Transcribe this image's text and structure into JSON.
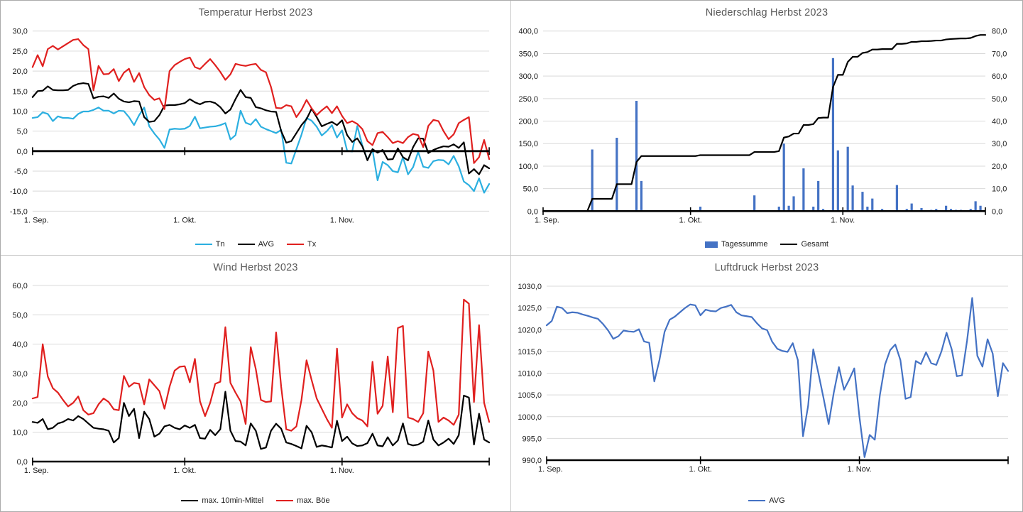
{
  "page": {
    "background": "#ffffff",
    "grid_color": "#d9d9d9",
    "title_color": "#595959"
  },
  "chart_data": [
    {
      "title": "Temperatur Herbst 2023",
      "type": "line",
      "x": {
        "tick_labels": [
          "1. Sep.",
          "1. Okt.",
          "1. Nov."
        ],
        "tick_days": [
          0,
          30,
          61
        ],
        "total_days": 91
      },
      "axes": {
        "left": {
          "min": -15,
          "max": 30,
          "step": 5,
          "labels": [
            "30,0",
            "25,0",
            "20,0",
            "15,0",
            "10,0",
            "5,0",
            "0,0",
            "-5,0",
            "-10,0",
            "-15,0"
          ],
          "label_color": "#1a1a1a"
        }
      },
      "x_axis_at_value": 0,
      "grid": true,
      "legend_position": "bottom",
      "series": [
        {
          "name": "Tn",
          "type": "line",
          "axis": "left",
          "color": "#2BAFE0",
          "values": [
            8.3,
            8.5,
            9.7,
            9.3,
            7.5,
            8.7,
            8.3,
            8.3,
            8.1,
            9.3,
            9.9,
            9.9,
            10.3,
            10.9,
            10.1,
            10.1,
            9.4,
            10.1,
            10.0,
            8.5,
            6.5,
            9.0,
            10.9,
            6.2,
            4.4,
            2.9,
            0.8,
            5.4,
            5.6,
            5.5,
            5.6,
            6.3,
            8.6,
            5.7,
            5.9,
            6.1,
            6.2,
            6.5,
            7.0,
            2.9,
            4.0,
            10.1,
            7.1,
            6.6,
            8.0,
            6.1,
            5.5,
            5.0,
            4.5,
            5.3,
            -2.9,
            -3.1,
            0.5,
            4.1,
            8.3,
            7.6,
            6.1,
            3.9,
            5.0,
            6.5,
            3.4,
            5.2,
            0.1,
            -0.1,
            6.3,
            1.4,
            -2.2,
            0.3,
            -7.3,
            -2.7,
            -3.5,
            -5.0,
            -5.3,
            -1.5,
            -5.8,
            -4.0,
            -0.2,
            -3.9,
            -4.2,
            -2.5,
            -2.2,
            -2.3,
            -3.3,
            -1.2,
            -3.8,
            -7.6,
            -8.5,
            -10.0,
            -6.8,
            -10.4,
            -8.2
          ]
        },
        {
          "name": "AVG",
          "type": "line",
          "axis": "left",
          "color": "#000000",
          "values": [
            13.5,
            15.0,
            15.1,
            16.2,
            15.3,
            15.2,
            15.2,
            15.3,
            16.3,
            16.8,
            17.0,
            16.8,
            13.2,
            13.6,
            13.7,
            13.3,
            14.4,
            13.1,
            12.4,
            12.2,
            12.5,
            12.4,
            8.5,
            7.3,
            7.5,
            9.0,
            11.4,
            11.5,
            11.5,
            11.7,
            12.0,
            13.0,
            12.2,
            11.7,
            12.3,
            12.4,
            12.0,
            11.0,
            9.4,
            10.4,
            13.0,
            15.3,
            13.5,
            13.3,
            11.0,
            10.7,
            10.2,
            9.9,
            9.8,
            5.0,
            2.1,
            2.5,
            4.5,
            6.5,
            8.0,
            10.6,
            8.5,
            6.2,
            6.8,
            7.3,
            6.5,
            7.7,
            4.0,
            2.3,
            3.2,
            1.2,
            -2.3,
            0.5,
            -0.4,
            0.3,
            -2.1,
            -2.0,
            0.7,
            -1.5,
            -2.3,
            1.0,
            3.2,
            3.1,
            -0.5,
            0.3,
            0.8,
            1.2,
            1.1,
            1.7,
            0.8,
            2.2,
            -5.6,
            -4.5,
            -5.8,
            -3.5,
            -4.3
          ]
        },
        {
          "name": "Tx",
          "type": "line",
          "axis": "left",
          "color": "#E0201F",
          "values": [
            21.0,
            24.0,
            21.2,
            25.5,
            26.3,
            25.4,
            26.2,
            27.0,
            27.8,
            28.0,
            26.5,
            25.5,
            15.2,
            21.3,
            19.2,
            19.3,
            20.5,
            17.5,
            19.6,
            20.6,
            17.3,
            19.5,
            16.0,
            14.0,
            12.8,
            13.2,
            10.5,
            20.0,
            21.5,
            22.3,
            23.0,
            23.4,
            21.0,
            20.5,
            21.8,
            23.0,
            21.5,
            19.8,
            17.8,
            19.2,
            21.8,
            21.5,
            21.3,
            21.6,
            21.8,
            20.3,
            19.7,
            16.0,
            10.8,
            10.7,
            11.5,
            11.2,
            8.5,
            10.3,
            12.8,
            10.7,
            9.0,
            10.2,
            11.2,
            9.5,
            11.2,
            8.8,
            7.0,
            7.5,
            6.8,
            5.5,
            2.5,
            1.5,
            4.5,
            4.8,
            3.5,
            2.0,
            2.5,
            2.0,
            3.5,
            4.3,
            4.0,
            1.0,
            6.3,
            7.8,
            7.5,
            5.0,
            3.0,
            4.2,
            7.0,
            7.8,
            8.5,
            -3.0,
            -1.5,
            2.8,
            -2.0
          ]
        }
      ]
    },
    {
      "title": "Niederschlag Herbst 2023",
      "type": "bar+line",
      "x": {
        "tick_labels": [
          "1. Sep.",
          "1. Okt.",
          "1. Nov."
        ],
        "tick_days": [
          0,
          30,
          61
        ],
        "total_days": 91
      },
      "axes": {
        "left": {
          "min": 0,
          "max": 400,
          "step": 50,
          "labels": [
            "400,0",
            "350,0",
            "300,0",
            "250,0",
            "200,0",
            "150,0",
            "100,0",
            "50,0",
            "0,0"
          ],
          "label_color": "#1a1a1a"
        },
        "right": {
          "min": 0,
          "max": 80,
          "step": 10,
          "labels": [
            "80,0",
            "70,0",
            "60,0",
            "50,0",
            "40,0",
            "30,0",
            "20,0",
            "10,0",
            "0,0"
          ],
          "label_color": "#4472C4"
        }
      },
      "x_axis_at_value": 0,
      "grid": true,
      "legend_position": "bottom",
      "series": [
        {
          "name": "Tagessumme",
          "type": "bar",
          "axis": "right",
          "color": "#4472C4",
          "values": [
            0,
            0,
            0,
            0,
            0,
            0,
            0,
            0,
            0,
            0,
            27.4,
            0,
            0,
            0,
            0,
            32.6,
            0,
            0,
            0,
            49.0,
            13.4,
            0,
            0,
            0,
            0,
            0,
            0,
            0,
            0,
            0,
            0,
            0,
            2.0,
            0,
            0,
            0,
            0,
            0,
            0,
            0,
            0,
            0,
            0,
            7.0,
            0,
            0,
            0,
            0,
            2.0,
            30.0,
            2.4,
            6.6,
            0,
            19.0,
            0,
            2.0,
            13.4,
            1.0,
            0,
            68.0,
            27.0,
            0,
            28.6,
            11.4,
            0,
            8.6,
            2.0,
            5.6,
            0,
            1.0,
            0,
            0,
            11.6,
            0,
            1.0,
            3.4,
            0,
            1.4,
            0,
            0.6,
            1.0,
            0,
            2.4,
            1.0,
            0.6,
            0.6,
            0,
            1.0,
            4.4,
            2.4,
            0
          ]
        },
        {
          "name": "Gesamt",
          "type": "line",
          "axis": "left",
          "color": "#000000",
          "values": [
            0,
            0,
            0,
            0,
            0,
            0,
            0,
            0,
            0,
            0,
            27.4,
            27.4,
            27.4,
            27.4,
            27.4,
            60,
            60,
            60,
            60,
            109,
            122.4,
            122.4,
            122.4,
            122.4,
            122.4,
            122.4,
            122.4,
            122.4,
            122.4,
            122.4,
            122.4,
            122.4,
            124.4,
            124.4,
            124.4,
            124.4,
            124.4,
            124.4,
            124.4,
            124.4,
            124.4,
            124.4,
            124.4,
            131.4,
            131.4,
            131.4,
            131.4,
            131.4,
            133.4,
            163.4,
            165.8,
            172.4,
            172.4,
            191.4,
            191.4,
            193.4,
            206.8,
            207.8,
            207.8,
            275.8,
            302.8,
            302.8,
            331.4,
            342.8,
            342.8,
            351.4,
            353.4,
            359,
            359,
            360,
            360,
            360,
            371.6,
            371.6,
            372.6,
            376,
            376,
            377.4,
            377.4,
            378,
            379,
            379,
            381.4,
            382.4,
            383,
            383.6,
            383.6,
            384.6,
            389,
            391.4,
            391.4
          ]
        }
      ]
    },
    {
      "title": "Wind Herbst 2023",
      "type": "line",
      "x": {
        "tick_labels": [
          "1. Sep.",
          "1. Okt.",
          "1. Nov."
        ],
        "tick_days": [
          0,
          30,
          61
        ],
        "total_days": 91
      },
      "axes": {
        "left": {
          "min": 0,
          "max": 60,
          "step": 10,
          "labels": [
            "60,0",
            "50,0",
            "40,0",
            "30,0",
            "20,0",
            "10,0",
            "0,0"
          ],
          "label_color": "#1a1a1a"
        }
      },
      "x_axis_at_value": 0,
      "grid": true,
      "legend_position": "bottom",
      "series": [
        {
          "name": "max. 10min-Mittel",
          "type": "line",
          "axis": "left",
          "color": "#000000",
          "values": [
            13.5,
            13.2,
            14.5,
            11.0,
            11.5,
            13.0,
            13.5,
            14.5,
            14.0,
            15.5,
            14.5,
            13.0,
            11.5,
            11.2,
            11.0,
            10.5,
            6.5,
            8.0,
            20.0,
            15.5,
            18.0,
            8.0,
            17.0,
            14.5,
            8.5,
            9.5,
            12.0,
            12.5,
            11.5,
            11.0,
            12.3,
            11.5,
            12.5,
            8.0,
            7.8,
            10.8,
            9.0,
            11.0,
            23.8,
            10.5,
            7.0,
            6.8,
            5.5,
            13.0,
            10.5,
            4.3,
            4.8,
            10.5,
            12.9,
            11.2,
            6.5,
            6.0,
            5.3,
            4.5,
            12.2,
            10.0,
            5.0,
            5.5,
            5.2,
            4.8,
            13.9,
            7.0,
            8.5,
            6.2,
            5.3,
            5.5,
            6.3,
            9.5,
            5.5,
            5.2,
            8.3,
            5.5,
            7.2,
            13.0,
            6.0,
            5.5,
            5.8,
            6.8,
            14.0,
            7.5,
            5.5,
            6.5,
            7.8,
            6.0,
            9.0,
            22.5,
            21.8,
            5.8,
            16.3,
            7.5,
            6.5
          ]
        },
        {
          "name": "max. Böe",
          "type": "line",
          "axis": "left",
          "color": "#E0201F",
          "values": [
            21.5,
            22.0,
            40.0,
            29.0,
            25.0,
            23.5,
            21.0,
            18.8,
            20.0,
            22.2,
            17.5,
            16.0,
            16.5,
            19.5,
            21.5,
            20.3,
            17.8,
            17.5,
            29.2,
            25.5,
            26.8,
            26.5,
            19.5,
            28.0,
            26.0,
            24.0,
            18.0,
            25.5,
            31.0,
            32.3,
            32.5,
            27.0,
            35.0,
            20.5,
            15.5,
            20.0,
            26.5,
            27.2,
            45.8,
            26.8,
            23.5,
            20.5,
            12.8,
            39.0,
            31.5,
            21.0,
            20.3,
            20.5,
            44.0,
            25.5,
            11.0,
            10.5,
            12.0,
            21.0,
            34.5,
            27.8,
            21.5,
            18.0,
            14.5,
            11.5,
            38.5,
            15.0,
            19.5,
            16.5,
            14.8,
            14.0,
            12.0,
            34.0,
            16.3,
            19.0,
            35.8,
            16.8,
            45.5,
            46.2,
            15.0,
            14.5,
            13.5,
            16.5,
            37.5,
            31.0,
            13.5,
            15.0,
            14.0,
            12.5,
            16.0,
            55.2,
            53.8,
            20.3,
            46.5,
            20.0,
            13.5
          ]
        }
      ]
    },
    {
      "title": "Luftdruck Herbst 2023",
      "type": "line",
      "x": {
        "tick_labels": [
          "1. Sep.",
          "1. Okt.",
          "1. Nov."
        ],
        "tick_days": [
          0,
          30,
          61
        ],
        "total_days": 91
      },
      "axes": {
        "left": {
          "min": 990,
          "max": 1030,
          "step": 5,
          "labels": [
            "1030,0",
            "1025,0",
            "1020,0",
            "1015,0",
            "1010,0",
            "1005,0",
            "1000,0",
            "995,0",
            "990,0"
          ],
          "label_color": "#1a1a1a"
        }
      },
      "x_axis_at_value": 990,
      "grid": true,
      "legend_position": "bottom",
      "series": [
        {
          "name": "AVG",
          "type": "line",
          "axis": "left",
          "color": "#4472C4",
          "values": [
            1021.0,
            1022.0,
            1025.3,
            1025.0,
            1023.8,
            1024.0,
            1023.9,
            1023.5,
            1023.2,
            1022.8,
            1022.5,
            1021.3,
            1019.8,
            1017.9,
            1018.5,
            1019.8,
            1019.6,
            1019.5,
            1020.1,
            1017.3,
            1017.0,
            1008.1,
            1013.0,
            1019.5,
            1022.3,
            1023.0,
            1024.0,
            1025.0,
            1025.8,
            1025.6,
            1023.3,
            1024.6,
            1024.3,
            1024.2,
            1025.0,
            1025.3,
            1025.7,
            1024.0,
            1023.3,
            1023.1,
            1022.9,
            1021.5,
            1020.3,
            1019.9,
            1017.2,
            1015.6,
            1015.1,
            1014.9,
            1016.9,
            1013.0,
            995.5,
            1002.5,
            1015.5,
            1010.0,
            1004.3,
            998.3,
            1005.5,
            1011.4,
            1006.2,
            1008.5,
            1011.1,
            1000.0,
            990.7,
            995.8,
            994.7,
            1005.0,
            1012.0,
            1015.3,
            1016.6,
            1013.0,
            1004.1,
            1004.5,
            1012.8,
            1012.1,
            1014.8,
            1012.3,
            1011.9,
            1015.0,
            1019.3,
            1015.5,
            1009.3,
            1009.5,
            1017.5,
            1027.3,
            1014.0,
            1011.5,
            1017.8,
            1014.5,
            1004.7,
            1012.3,
            1010.5
          ]
        }
      ]
    }
  ]
}
